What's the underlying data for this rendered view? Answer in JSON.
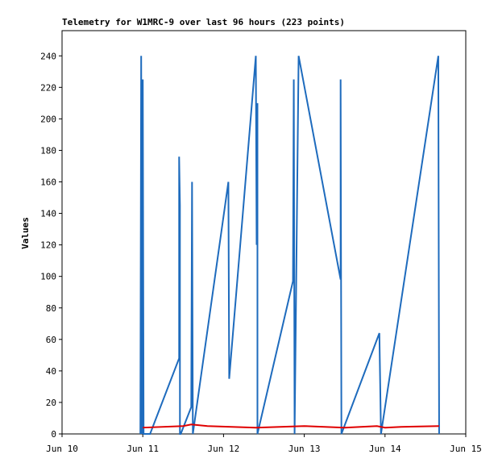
{
  "chart_data": {
    "type": "line",
    "title": "Telemetry for W1MRC-9 over last 96 hours (223 points)",
    "y_label": "Values",
    "xlim": [
      10,
      15
    ],
    "xticks": [
      {
        "value": 10,
        "label": "Jun 10"
      },
      {
        "value": 11,
        "label": "Jun 11"
      },
      {
        "value": 12,
        "label": "Jun 12"
      },
      {
        "value": 13,
        "label": "Jun 13"
      },
      {
        "value": 14,
        "label": "Jun 14"
      },
      {
        "value": 15,
        "label": "Jun 15"
      }
    ],
    "ylim": [
      0,
      256
    ],
    "yticks": [
      0,
      20,
      40,
      60,
      80,
      100,
      120,
      140,
      160,
      180,
      200,
      220,
      240
    ],
    "grid": false,
    "series": [
      {
        "color": "#1e6bbd",
        "x": [
          10.97,
          10.98,
          10.99,
          11.0,
          11.01,
          11.09,
          11.45,
          11.45,
          11.46,
          11.46,
          11.47,
          11.6,
          11.61,
          11.62,
          12.06,
          12.07,
          12.4,
          12.41,
          12.42,
          12.42,
          12.86,
          12.87,
          12.88,
          12.93,
          13.45,
          13.45,
          13.46,
          13.93,
          13.94,
          13.95,
          14.66,
          14.67
        ],
        "values": [
          0,
          240,
          0,
          225,
          0,
          0,
          48,
          176,
          145,
          0,
          0,
          17,
          160,
          0,
          160,
          35,
          240,
          120,
          210,
          0,
          97,
          225,
          0,
          240,
          98,
          225,
          0,
          64,
          32,
          0,
          240,
          0
        ]
      },
      {
        "color": "#e00000",
        "x": [
          11.0,
          11.5,
          11.6,
          11.8,
          12.4,
          13.0,
          13.5,
          13.9,
          14.0,
          14.2,
          14.67
        ],
        "values": [
          4,
          5,
          6,
          5,
          4,
          5,
          4,
          5,
          4,
          4.5,
          5
        ]
      }
    ]
  }
}
